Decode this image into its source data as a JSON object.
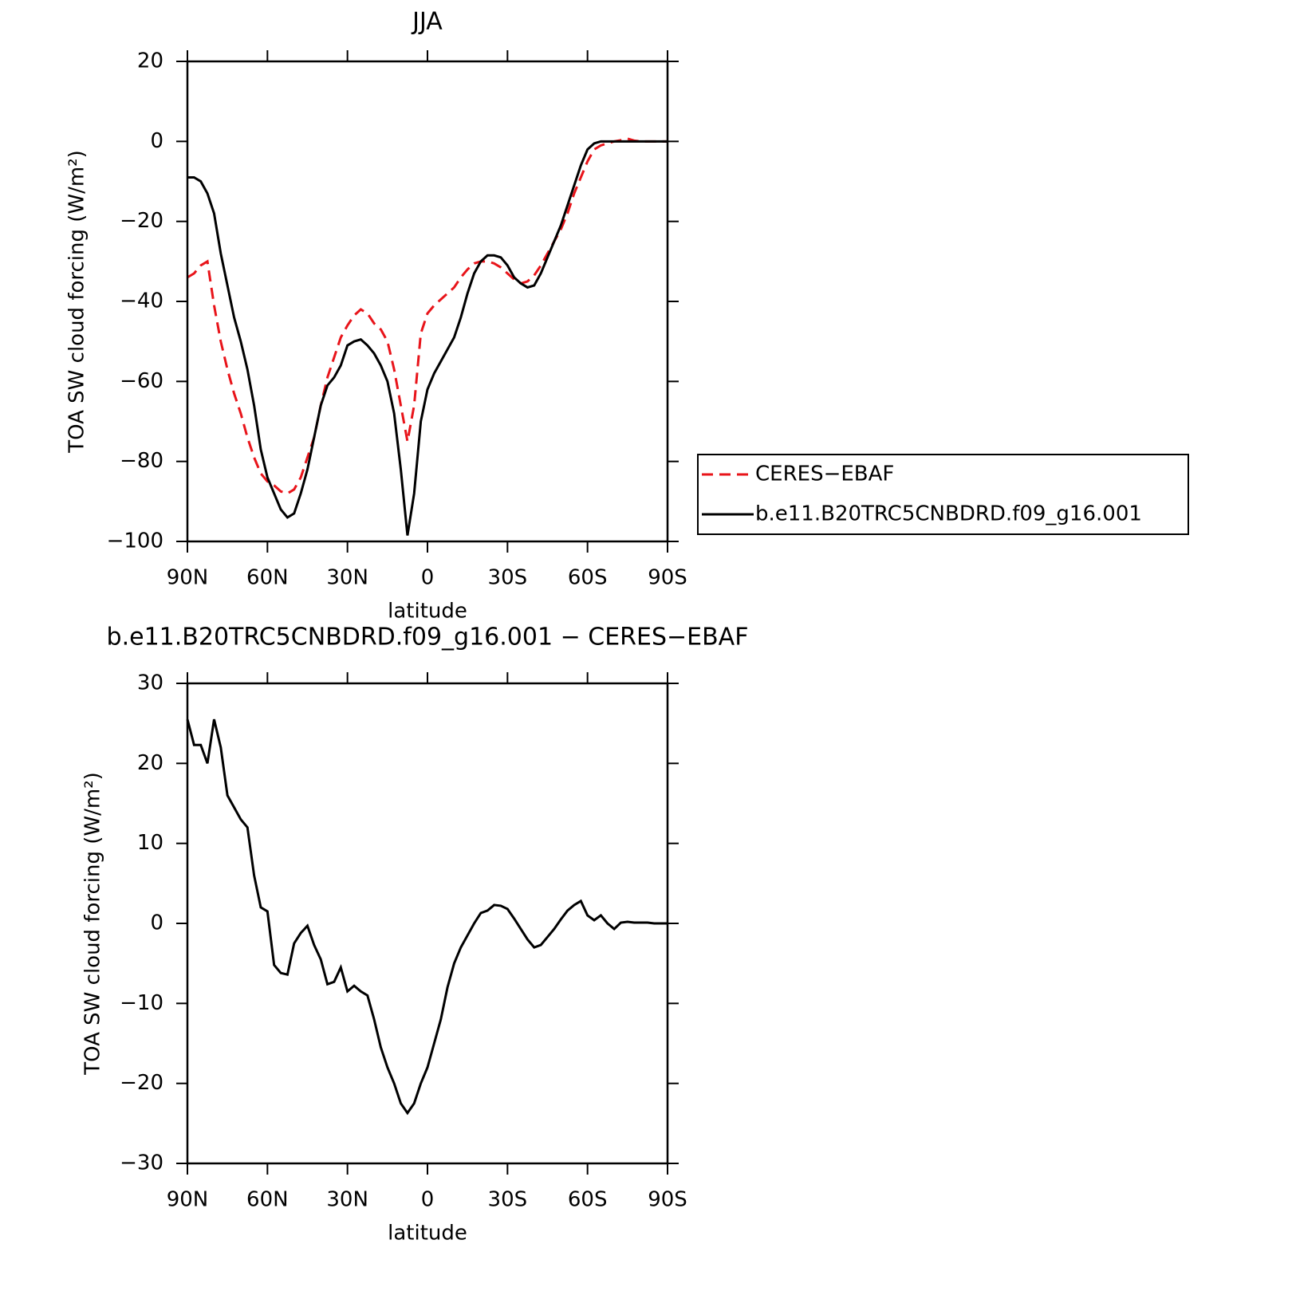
{
  "chart_data": [
    {
      "type": "line",
      "title": "JJA",
      "xlabel": "latitude",
      "ylabel": "TOA SW cloud forcing (W/m²)",
      "x": [
        90,
        87.5,
        85,
        82.5,
        80,
        77.5,
        75,
        72.5,
        70,
        67.5,
        65,
        62.5,
        60,
        57.5,
        55,
        52.5,
        50,
        47.5,
        45,
        42.5,
        40,
        37.5,
        35,
        32.5,
        30,
        27.5,
        25,
        22.5,
        20,
        17.5,
        15,
        12.5,
        10,
        7.5,
        5,
        2.5,
        0,
        -2.5,
        -5,
        -7.5,
        -10,
        -12.5,
        -15,
        -17.5,
        -20,
        -22.5,
        -25,
        -27.5,
        -30,
        -32.5,
        -35,
        -37.5,
        -40,
        -42.5,
        -45,
        -47.5,
        -50,
        -52.5,
        -55,
        -57.5,
        -60,
        -62.5,
        -65,
        -67.5,
        -70,
        -72.5,
        -75,
        -77.5,
        -80,
        -82.5,
        -85,
        -87.5,
        -90
      ],
      "series": [
        {
          "name": "CERES−EBAF",
          "color": "#e8141a",
          "linestyle": "dashed",
          "values": [
            -34,
            -33,
            -31,
            -30,
            -41,
            -50,
            -57,
            -63,
            -68,
            -74,
            -79,
            -83,
            -85,
            -86,
            -87.5,
            -88,
            -87,
            -84,
            -79,
            -74,
            -66,
            -59,
            -54,
            -49,
            -46,
            -43.5,
            -42,
            -43,
            -45.5,
            -47,
            -50,
            -57,
            -66,
            -75,
            -66,
            -48,
            -43,
            -41,
            -39.5,
            -38,
            -36.5,
            -34,
            -32,
            -30.5,
            -30,
            -30,
            -30.5,
            -31.5,
            -33,
            -34.5,
            -35.5,
            -35,
            -33.5,
            -31,
            -28,
            -25,
            -22,
            -18,
            -13,
            -9,
            -5,
            -2,
            -1,
            -0.5,
            0,
            0.3,
            0.7,
            0.2,
            0,
            0,
            0,
            0,
            0
          ]
        },
        {
          "name": "b.e11.B20TRC5CNBDRD.f09_g16.001",
          "color": "#000000",
          "linestyle": "solid",
          "values": [
            -9,
            -9,
            -10,
            -13,
            -18,
            -28,
            -36,
            -44,
            -50,
            -57,
            -66,
            -77,
            -84,
            -88,
            -92,
            -94,
            -93,
            -88,
            -82,
            -74,
            -66,
            -61,
            -59,
            -56,
            -51,
            -50,
            -49.5,
            -51,
            -53,
            -56,
            -60,
            -68,
            -82,
            -98.5,
            -88,
            -70,
            -62,
            -58,
            -55,
            -52,
            -49,
            -44,
            -38,
            -33,
            -30,
            -28.5,
            -28.5,
            -29,
            -31,
            -34,
            -35.5,
            -36.5,
            -36,
            -33,
            -29,
            -25,
            -21,
            -16,
            -11,
            -6,
            -2,
            -0.5,
            0,
            0,
            0,
            0,
            0,
            0,
            0,
            0,
            0,
            0,
            0
          ]
        }
      ],
      "xlim": [
        90,
        -90
      ],
      "xticks": [
        {
          "value": 90,
          "label": "90N"
        },
        {
          "value": 60,
          "label": "60N"
        },
        {
          "value": 30,
          "label": "30N"
        },
        0,
        {
          "value": -30,
          "label": "30S"
        },
        {
          "value": -60,
          "label": "60S"
        },
        {
          "value": -90,
          "label": "90S"
        }
      ],
      "ylim": [
        -100,
        20
      ],
      "yticks": [
        {
          "value": -100,
          "label": "−100"
        },
        {
          "value": -80,
          "label": "−80"
        },
        {
          "value": -60,
          "label": "−60"
        },
        {
          "value": -40,
          "label": "−40"
        },
        {
          "value": -20,
          "label": "−20"
        },
        0,
        20
      ],
      "legend": "right"
    },
    {
      "type": "line",
      "title": "b.e11.B20TRC5CNBDRD.f09_g16.001 − CERES−EBAF",
      "xlabel": "latitude",
      "ylabel": "TOA SW cloud forcing (W/m²)",
      "x": [
        90,
        87.5,
        85,
        82.5,
        80,
        77.5,
        75,
        72.5,
        70,
        67.5,
        65,
        62.5,
        60,
        57.5,
        55,
        52.5,
        50,
        47.5,
        45,
        42.5,
        40,
        37.5,
        35,
        32.5,
        30,
        27.5,
        25,
        22.5,
        20,
        17.5,
        15,
        12.5,
        10,
        7.5,
        5,
        2.5,
        0,
        -2.5,
        -5,
        -7.5,
        -10,
        -12.5,
        -15,
        -17.5,
        -20,
        -22.5,
        -25,
        -27.5,
        -30,
        -32.5,
        -35,
        -37.5,
        -40,
        -42.5,
        -45,
        -47.5,
        -50,
        -52.5,
        -55,
        -57.5,
        -60,
        -62.5,
        -65,
        -67.5,
        -70,
        -72.5,
        -75,
        -77.5,
        -80,
        -82.5,
        -85,
        -87.5,
        -90
      ],
      "series": [
        {
          "color": "#000000",
          "linestyle": "solid",
          "values": [
            25.5,
            22.3,
            22.3,
            20,
            25.5,
            22,
            16,
            14.5,
            13,
            12,
            6,
            2,
            1.5,
            -5.2,
            -6.2,
            -6.4,
            -2.5,
            -1.2,
            -0.3,
            -2.7,
            -4.5,
            -7.6,
            -7.3,
            -5.5,
            -8.5,
            -7.8,
            -8.5,
            -9,
            -12,
            -15.5,
            -18,
            -20,
            -22.5,
            -23.7,
            -22.5,
            -20,
            -18,
            -15,
            -12,
            -8,
            -5,
            -3,
            -1.5,
            0,
            1.3,
            1.6,
            2.3,
            2.2,
            1.8,
            0.6,
            -0.7,
            -2,
            -3,
            -2.7,
            -1.7,
            -0.7,
            0.5,
            1.6,
            2.3,
            2.8,
            1,
            0.4,
            1,
            0,
            -0.7,
            0.1,
            0.2,
            0.1,
            0.1,
            0.1,
            0,
            0,
            0
          ]
        }
      ],
      "xlim": [
        90,
        -90
      ],
      "xticks": [
        {
          "value": 90,
          "label": "90N"
        },
        {
          "value": 60,
          "label": "60N"
        },
        {
          "value": 30,
          "label": "30N"
        },
        0,
        {
          "value": -30,
          "label": "30S"
        },
        {
          "value": -60,
          "label": "60S"
        },
        {
          "value": -90,
          "label": "90S"
        }
      ],
      "ylim": [
        -30,
        30
      ],
      "yticks": [
        {
          "value": -30,
          "label": "−30"
        },
        {
          "value": -20,
          "label": "−20"
        },
        {
          "value": -10,
          "label": "−10"
        },
        0,
        10,
        20,
        30
      ]
    }
  ]
}
